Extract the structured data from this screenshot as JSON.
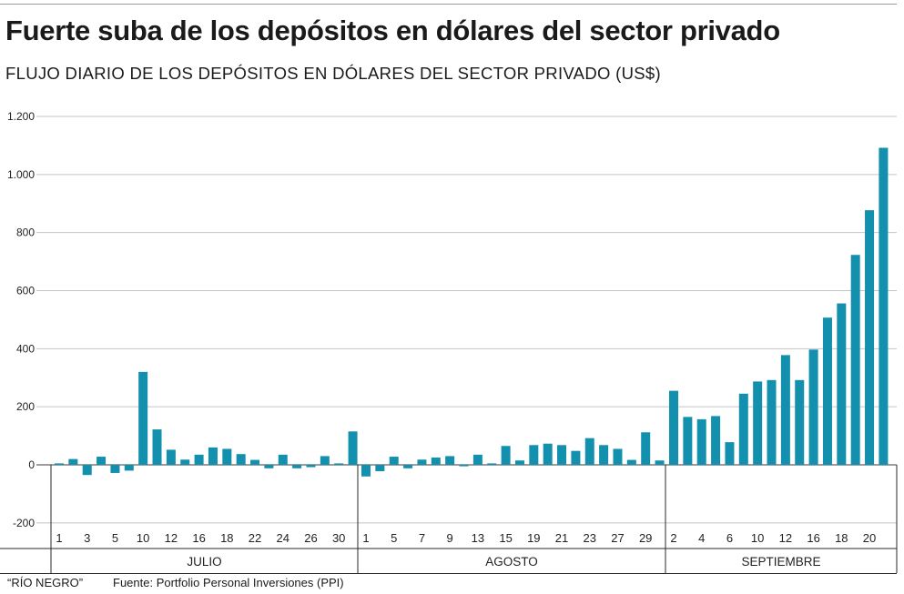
{
  "chart_data": {
    "type": "bar",
    "title": "Fuerte suba de los depósitos en dólares del sector privado",
    "subtitle": "FLUJO DIARIO DE LOS DEPÓSITOS EN DÓLARES DEL SECTOR PRIVADO (US$)",
    "ylim": [
      -200,
      1200
    ],
    "yticks": [
      -200,
      0,
      200,
      400,
      600,
      800,
      1000,
      1200
    ],
    "ytick_labels": [
      "-200",
      "0",
      "200",
      "400",
      "600",
      "800",
      "1.000",
      "1.200"
    ],
    "grid": true,
    "bar_color": "#1390ad",
    "months": [
      {
        "name": "JULIO",
        "days": [
          1,
          2,
          3,
          4,
          5,
          6,
          10,
          11,
          12,
          13,
          16,
          17,
          18,
          19,
          22,
          23,
          24,
          25,
          26,
          29,
          30,
          31
        ],
        "values": [
          5,
          20,
          -35,
          28,
          -28,
          -20,
          320,
          122,
          52,
          18,
          35,
          60,
          55,
          37,
          17,
          -12,
          35,
          -12,
          -8,
          30,
          5,
          115
        ],
        "tick_labels": [
          "1",
          "3",
          "5",
          "10",
          "12",
          "16",
          "18",
          "22",
          "24",
          "26",
          "30"
        ],
        "tick_days": [
          1,
          3,
          5,
          10,
          12,
          16,
          18,
          22,
          24,
          26,
          30
        ]
      },
      {
        "name": "AGOSTO",
        "days": [
          1,
          2,
          5,
          6,
          7,
          8,
          9,
          12,
          13,
          14,
          15,
          16,
          19,
          20,
          21,
          22,
          23,
          26,
          27,
          28,
          29,
          30
        ],
        "values": [
          -40,
          -22,
          28,
          -12,
          18,
          25,
          30,
          -5,
          35,
          5,
          65,
          15,
          68,
          73,
          68,
          48,
          92,
          68,
          55,
          17,
          112,
          15
        ],
        "tick_labels": [
          "1",
          "5",
          "7",
          "9",
          "13",
          "15",
          "19",
          "21",
          "23",
          "27",
          "29"
        ],
        "tick_days": [
          1,
          5,
          7,
          9,
          13,
          15,
          19,
          21,
          23,
          27,
          29
        ]
      },
      {
        "name": "SEPTIEMBRE",
        "days": [
          2,
          3,
          4,
          5,
          6,
          9,
          10,
          11,
          12,
          13,
          16,
          17,
          18,
          19,
          20,
          23
        ],
        "values": [
          255,
          165,
          157,
          168,
          78,
          245,
          287,
          292,
          378,
          292,
          397,
          507,
          556,
          723,
          877,
          1092
        ],
        "tick_labels": [
          "2",
          "4",
          "6",
          "10",
          "12",
          "16",
          "18",
          "20"
        ],
        "tick_days": [
          2,
          4,
          6,
          10,
          12,
          16,
          18,
          20
        ]
      }
    ]
  },
  "footer": {
    "credit": "“RÍO NEGRO”",
    "source": "Fuente: Portfolio Personal Inversiones (PPI)"
  }
}
